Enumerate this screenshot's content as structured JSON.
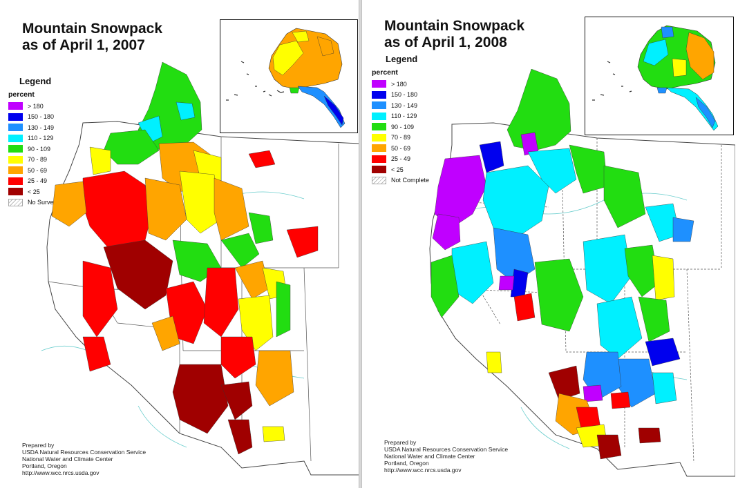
{
  "maps": [
    {
      "id": "2007",
      "title_line1": "Mountain Snowpack",
      "title_line2": "as of April 1, 2007",
      "legend_title": "Legend",
      "legend_subtitle": "percent",
      "legend_items": [
        {
          "label": "> 180",
          "color": "#c000ff"
        },
        {
          "label": "150 - 180",
          "color": "#0000ee"
        },
        {
          "label": "130 - 149",
          "color": "#1e90ff"
        },
        {
          "label": "110 - 129",
          "color": "#00f0ff"
        },
        {
          "label": "90 - 109",
          "color": "#22dd11"
        },
        {
          "label": "70 - 89",
          "color": "#ffff00"
        },
        {
          "label": "50 - 69",
          "color": "#ffa500"
        },
        {
          "label": "25 - 49",
          "color": "#ff0000"
        },
        {
          "label": "< 25",
          "color": "#a00000"
        }
      ],
      "legend_hatch_label": "No Survey",
      "credits": [
        "Prepared by",
        "USDA Natural Resources Conservation Service",
        "National Water and Climate Center",
        "Portland, Oregon",
        "http://www.wcc.nrcs.usda.gov"
      ]
    },
    {
      "id": "2008",
      "title_line1": "Mountain Snowpack",
      "title_line2": "as of April 1, 2008",
      "legend_title": "Legend",
      "legend_subtitle": "percent",
      "legend_items": [
        {
          "label": "> 180",
          "color": "#c000ff"
        },
        {
          "label": "150 - 180",
          "color": "#0000ee"
        },
        {
          "label": "130 - 149",
          "color": "#1e90ff"
        },
        {
          "label": "110 - 129",
          "color": "#00f0ff"
        },
        {
          "label": "90 - 109",
          "color": "#22dd11"
        },
        {
          "label": "70 - 89",
          "color": "#ffff00"
        },
        {
          "label": "50 - 69",
          "color": "#ffa500"
        },
        {
          "label": "25 - 49",
          "color": "#ff0000"
        },
        {
          "label": "< 25",
          "color": "#a00000"
        }
      ],
      "legend_hatch_label": "Not Complete",
      "credits": [
        "Prepared by",
        "USDA Natural Resources Conservation Service",
        "National Water and Climate Center",
        "Portland, Oregon",
        "http://www.wcc.nrcs.usda.gov"
      ]
    }
  ]
}
